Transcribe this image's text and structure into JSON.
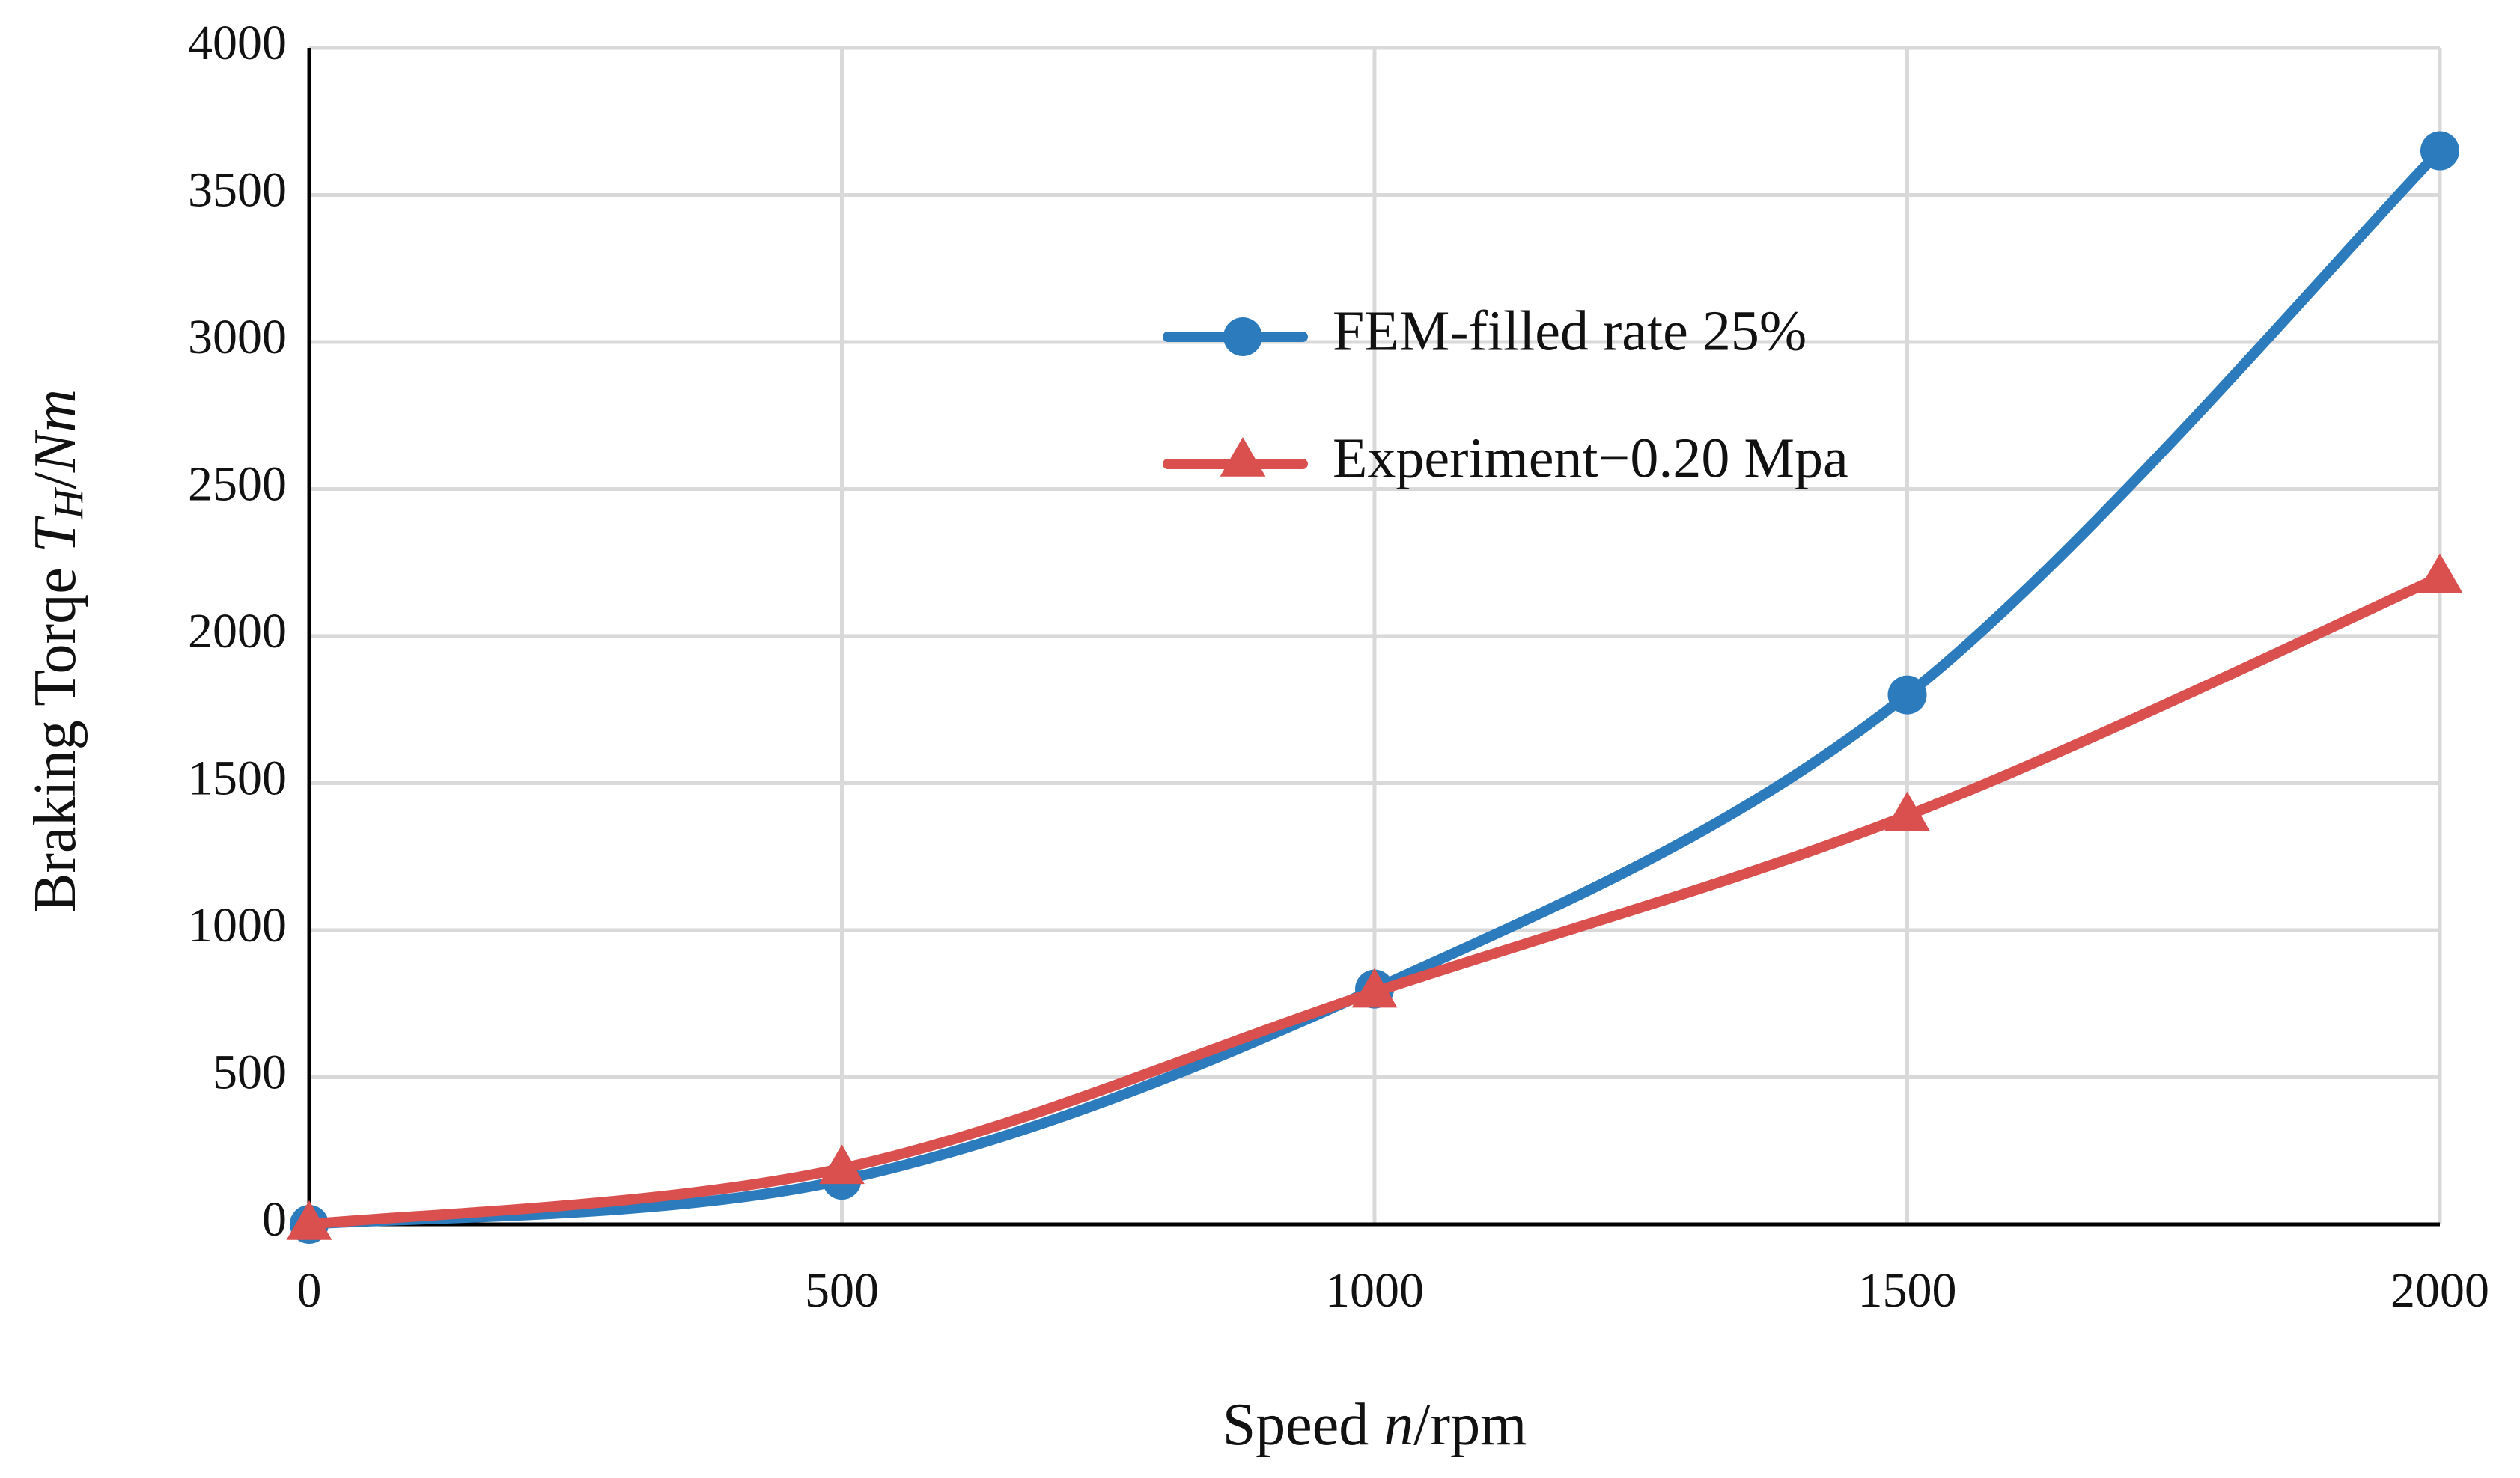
{
  "chart_data": {
    "type": "line",
    "title": "",
    "xlabel": {
      "prefix": "Speed ",
      "var": "n",
      "suffix": "/rpm"
    },
    "ylabel": {
      "prefix": "Braking Torqe ",
      "var": "T",
      "sub": "H",
      "suffix": "/",
      "unit": "Nm"
    },
    "xlim": [
      0,
      2000
    ],
    "ylim": [
      0,
      4000
    ],
    "xticks": [
      "0",
      "500",
      "1000",
      "1500",
      "2000"
    ],
    "yticks": [
      "0",
      "500",
      "1000",
      "1500",
      "2000",
      "2500",
      "3000",
      "3500",
      "4000"
    ],
    "grid": true,
    "legend_position": "center-right",
    "series": [
      {
        "name": "FEM-filled rate 25%",
        "color": "#2b7bbd",
        "marker": "circle",
        "x": [
          0,
          500,
          1000,
          1500,
          2000
        ],
        "y": [
          0,
          150,
          800,
          1800,
          3650
        ]
      },
      {
        "name": "Experiment−0.20 Mpa",
        "color": "#d9504f",
        "marker": "triangle",
        "x": [
          0,
          500,
          1000,
          1500,
          2000
        ],
        "y": [
          0,
          190,
          790,
          1390,
          2200
        ]
      }
    ]
  }
}
